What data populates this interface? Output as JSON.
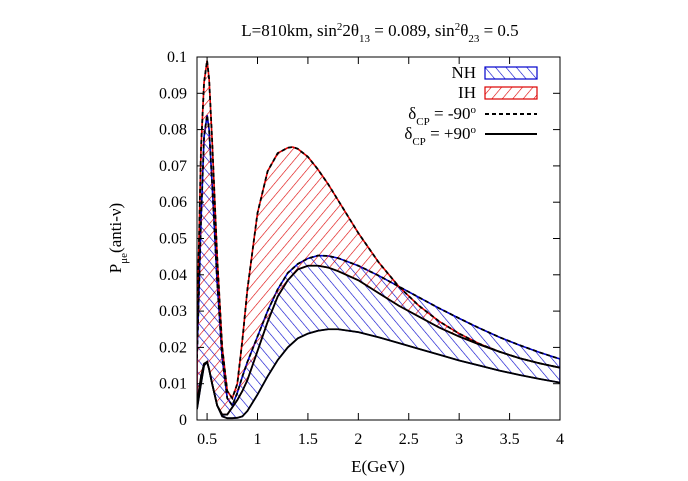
{
  "chart_data": {
    "type": "area",
    "title": {
      "parts": [
        {
          "t": "L=810km, sin"
        },
        {
          "t": "2",
          "sup": true
        },
        {
          "t": "2θ"
        },
        {
          "t": "13",
          "sub": true
        },
        {
          "t": " = 0.089, sin"
        },
        {
          "t": "2",
          "sup": true
        },
        {
          "t": "θ"
        },
        {
          "t": "23",
          "sub": true
        },
        {
          "t": " = 0.5"
        }
      ]
    },
    "xlabel": "E(GeV)",
    "ylabel": {
      "parts": [
        {
          "t": "P"
        },
        {
          "t": "μe",
          "sub": true
        },
        {
          "t": "(anti-ν)"
        }
      ]
    },
    "xlim": [
      0.4,
      4
    ],
    "ylim": [
      0,
      0.1
    ],
    "xticks": [
      0.5,
      1,
      1.5,
      2,
      2.5,
      3,
      3.5,
      4
    ],
    "xtick_labels": [
      "0.5",
      "1",
      "1.5",
      "2",
      "2.5",
      "3",
      "3.5",
      "4"
    ],
    "yticks": [
      0,
      0.01,
      0.02,
      0.03,
      0.04,
      0.05,
      0.06,
      0.07,
      0.08,
      0.09,
      0.1
    ],
    "ytick_labels": [
      "0",
      "0.01",
      "0.02",
      "0.03",
      "0.04",
      "0.05",
      "0.06",
      "0.07",
      "0.08",
      "0.09",
      "0.1"
    ],
    "grid": false,
    "legend_position": "top-right",
    "colors": {
      "NH": "#0000cc",
      "IH": "#dd0000",
      "curve": "#000000"
    },
    "legend": [
      {
        "kind": "hatch",
        "series": "NH",
        "parts": [
          {
            "t": "NH"
          }
        ]
      },
      {
        "kind": "hatch",
        "series": "IH",
        "parts": [
          {
            "t": "IH"
          }
        ]
      },
      {
        "kind": "dashed",
        "parts": [
          {
            "t": "δ"
          },
          {
            "t": "CP",
            "sub": true
          },
          {
            "t": " = -90"
          },
          {
            "t": "o",
            "sup": true
          }
        ]
      },
      {
        "kind": "solid",
        "parts": [
          {
            "t": "δ"
          },
          {
            "t": "CP",
            "sub": true
          },
          {
            "t": " = +90"
          },
          {
            "t": "o",
            "sup": true
          }
        ]
      }
    ],
    "bands": [
      {
        "name": "NH",
        "upper": {
          "name": "NH δCP=-90°",
          "style": "dashed",
          "x": [
            0.4,
            0.44,
            0.47,
            0.5,
            0.52,
            0.55,
            0.6,
            0.65,
            0.7,
            0.75,
            0.8,
            0.85,
            0.9,
            1.0,
            1.1,
            1.2,
            1.3,
            1.4,
            1.5,
            1.6,
            1.7,
            1.8,
            2.0,
            2.2,
            2.4,
            2.6,
            2.8,
            3.0,
            3.2,
            3.4,
            3.6,
            3.8,
            4.0
          ],
          "y": [
            0.017,
            0.055,
            0.078,
            0.084,
            0.08,
            0.065,
            0.038,
            0.017,
            0.006,
            0.004,
            0.0075,
            0.012,
            0.016,
            0.023,
            0.03,
            0.036,
            0.0405,
            0.043,
            0.0445,
            0.0453,
            0.0452,
            0.0446,
            0.0425,
            0.0398,
            0.0368,
            0.0338,
            0.0308,
            0.028,
            0.0253,
            0.0228,
            0.0206,
            0.0186,
            0.0168
          ]
        },
        "lower": {
          "name": "NH δCP=+90°",
          "style": "solid",
          "x": [
            0.4,
            0.44,
            0.47,
            0.5,
            0.52,
            0.55,
            0.6,
            0.65,
            0.7,
            0.75,
            0.8,
            0.85,
            0.9,
            1.0,
            1.1,
            1.2,
            1.3,
            1.4,
            1.5,
            1.6,
            1.7,
            1.8,
            2.0,
            2.2,
            2.4,
            2.6,
            2.8,
            3.0,
            3.2,
            3.4,
            3.6,
            3.8,
            4.0
          ],
          "y": [
            0.003,
            0.01,
            0.015,
            0.016,
            0.014,
            0.01,
            0.004,
            0.001,
            0.0005,
            0.0005,
            0.0006,
            0.001,
            0.0025,
            0.007,
            0.012,
            0.0165,
            0.02,
            0.0225,
            0.0238,
            0.0246,
            0.025,
            0.025,
            0.0242,
            0.0228,
            0.0212,
            0.0196,
            0.018,
            0.0164,
            0.015,
            0.0136,
            0.0124,
            0.0113,
            0.0103
          ]
        }
      },
      {
        "name": "IH",
        "upper": {
          "name": "IH δCP=-90°",
          "style": "dashed",
          "x": [
            0.4,
            0.44,
            0.47,
            0.5,
            0.52,
            0.55,
            0.6,
            0.65,
            0.7,
            0.75,
            0.8,
            0.85,
            0.9,
            1.0,
            1.1,
            1.2,
            1.3,
            1.35,
            1.4,
            1.5,
            1.6,
            1.7,
            1.8,
            2.0,
            2.2,
            2.4,
            2.6,
            2.8,
            3.0,
            3.2,
            3.4,
            3.6,
            3.8,
            4.0
          ],
          "y": [
            0.024,
            0.075,
            0.093,
            0.099,
            0.094,
            0.077,
            0.045,
            0.02,
            0.008,
            0.006,
            0.01,
            0.022,
            0.036,
            0.057,
            0.0685,
            0.0735,
            0.075,
            0.0752,
            0.0747,
            0.0725,
            0.069,
            0.065,
            0.0605,
            0.0515,
            0.0435,
            0.0368,
            0.0315,
            0.0272,
            0.0238,
            0.021,
            0.0188,
            0.017,
            0.0156,
            0.0144
          ]
        },
        "lower": {
          "name": "IH δCP=+90°",
          "style": "solid",
          "x": [
            0.4,
            0.44,
            0.47,
            0.5,
            0.52,
            0.55,
            0.6,
            0.65,
            0.7,
            0.75,
            0.8,
            0.85,
            0.9,
            1.0,
            1.1,
            1.2,
            1.3,
            1.4,
            1.5,
            1.6,
            1.7,
            1.8,
            2.0,
            2.2,
            2.4,
            2.6,
            2.8,
            3.0,
            3.2,
            3.4,
            3.6,
            3.8,
            4.0
          ],
          "y": [
            0.0045,
            0.012,
            0.0155,
            0.016,
            0.014,
            0.01,
            0.004,
            0.0015,
            0.0015,
            0.0035,
            0.0055,
            0.008,
            0.011,
            0.019,
            0.027,
            0.034,
            0.0385,
            0.0415,
            0.0425,
            0.0425,
            0.042,
            0.041,
            0.0385,
            0.035,
            0.0315,
            0.0285,
            0.0255,
            0.023,
            0.0208,
            0.0188,
            0.017,
            0.0156,
            0.0144
          ]
        }
      }
    ]
  }
}
